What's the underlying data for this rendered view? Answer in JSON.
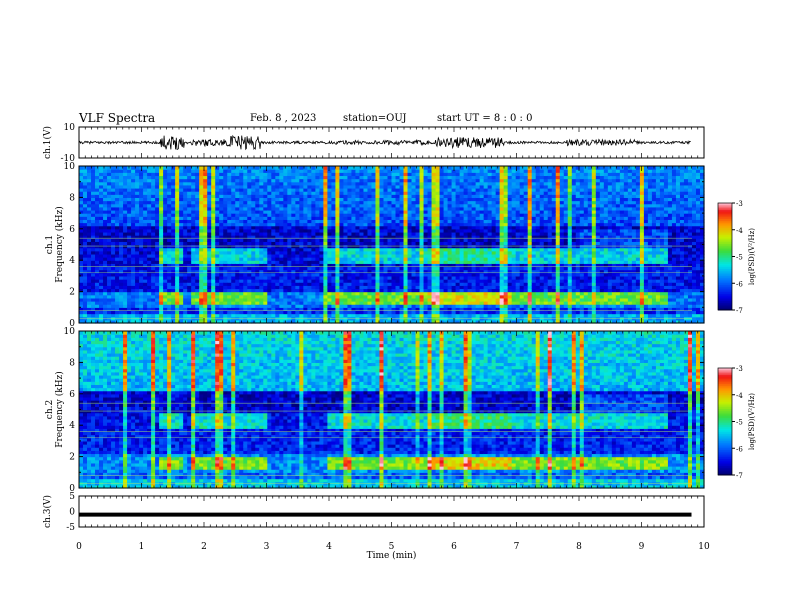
{
  "header": {
    "title": "VLF Spectra",
    "date": "Feb. 8 , 2023",
    "station": "station=OUJ",
    "start": "start UT =  8 : 0 : 0"
  },
  "chart_data": [
    {
      "type": "line",
      "name": "ch1-waveform",
      "ylabel": "ch.1(V)",
      "ylim": [
        -10,
        10
      ],
      "yticks": [
        "10",
        "-10"
      ],
      "xlim": [
        0,
        10
      ]
    },
    {
      "type": "heatmap",
      "name": "ch1-spectrogram",
      "ylabel": "Frequency (kHz)",
      "ylabel2": "ch.1",
      "ylim": [
        0,
        10
      ],
      "yticks": [
        "0",
        "2",
        "4",
        "6",
        "8",
        "10"
      ],
      "xlim": [
        0,
        10
      ],
      "colorbar": {
        "label": "log(PSD)(V²/Hz)",
        "ticks": [
          "-3",
          "-4",
          "-5",
          "-6",
          "-7"
        ],
        "range": [
          -7,
          -3
        ]
      }
    },
    {
      "type": "heatmap",
      "name": "ch2-spectrogram",
      "ylabel": "Frequency (kHz)",
      "ylabel2": "ch.2",
      "ylim": [
        0,
        10
      ],
      "yticks": [
        "0",
        "2",
        "4",
        "6",
        "8",
        "10"
      ],
      "xlim": [
        0,
        10
      ],
      "colorbar": {
        "label": "log(PSD)(V²/Hz)",
        "ticks": [
          "-3",
          "-4",
          "-5",
          "-6",
          "-7"
        ],
        "range": [
          -7,
          -3
        ]
      }
    },
    {
      "type": "line",
      "name": "ch3-waveform",
      "ylabel": "ch.3(V)",
      "ylim": [
        -5,
        5
      ],
      "yticks": [
        "5",
        "0",
        "-5"
      ],
      "xlim": [
        0,
        10
      ],
      "xlabel": "Time (min)",
      "xticks": [
        "0",
        "1",
        "2",
        "3",
        "4",
        "5",
        "6",
        "7",
        "8",
        "9",
        "10"
      ]
    }
  ]
}
